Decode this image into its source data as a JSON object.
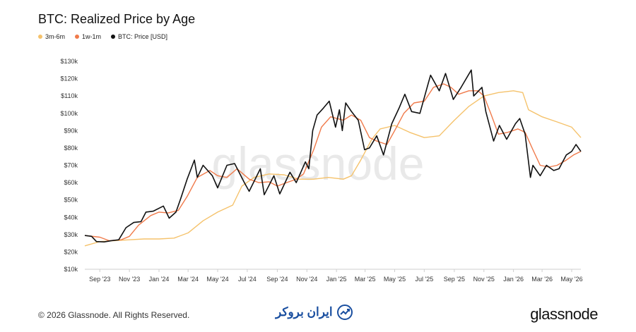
{
  "chart_data": {
    "type": "line",
    "title": "BTC: Realized Price by Age",
    "watermark": "glassnode",
    "legend_position": "top-left",
    "grid": false,
    "ylim": [
      10000,
      130000
    ],
    "y_ticks": [
      {
        "value": 10000,
        "label": "$10k"
      },
      {
        "value": 20000,
        "label": "$20k"
      },
      {
        "value": 30000,
        "label": "$30k"
      },
      {
        "value": 40000,
        "label": "$40k"
      },
      {
        "value": 50000,
        "label": "$50k"
      },
      {
        "value": 60000,
        "label": "$60k"
      },
      {
        "value": 70000,
        "label": "$70k"
      },
      {
        "value": 80000,
        "label": "$80k"
      },
      {
        "value": 90000,
        "label": "$90k"
      },
      {
        "value": 100000,
        "label": "$100k"
      },
      {
        "value": 110000,
        "label": "$110k"
      },
      {
        "value": 120000,
        "label": "$120k"
      },
      {
        "value": 130000,
        "label": "$130k"
      }
    ],
    "xlim": [
      "2023-08-01",
      "2026-05-20"
    ],
    "x_ticks": [
      {
        "date": "2023-09-01",
        "label": "Sep '23"
      },
      {
        "date": "2023-11-01",
        "label": "Nov '23"
      },
      {
        "date": "2024-01-01",
        "label": "Jan '24"
      },
      {
        "date": "2024-03-01",
        "label": "Mar '24"
      },
      {
        "date": "2024-05-01",
        "label": "May '24"
      },
      {
        "date": "2024-07-01",
        "label": "Jul '24"
      },
      {
        "date": "2024-09-01",
        "label": "Sep '24"
      },
      {
        "date": "2024-11-01",
        "label": "Nov '24"
      },
      {
        "date": "2025-01-01",
        "label": "Jan '25"
      },
      {
        "date": "2025-03-01",
        "label": "Mar '25"
      },
      {
        "date": "2025-05-01",
        "label": "May '25"
      },
      {
        "date": "2025-07-01",
        "label": "Jul '25"
      },
      {
        "date": "2025-09-01",
        "label": "Sep '25"
      },
      {
        "date": "2025-11-01",
        "label": "Nov '25"
      },
      {
        "date": "2026-01-01",
        "label": "Jan '26"
      },
      {
        "date": "2026-03-01",
        "label": "Mar '26"
      },
      {
        "date": "2026-05-01",
        "label": "May '26"
      }
    ],
    "series": [
      {
        "name": "3m-6m",
        "color": "#f5c26b",
        "points": [
          [
            "2023-08-01",
            23500
          ],
          [
            "2023-09-01",
            26000
          ],
          [
            "2023-10-01",
            26500
          ],
          [
            "2023-11-01",
            27000
          ],
          [
            "2023-12-01",
            27500
          ],
          [
            "2024-01-01",
            27500
          ],
          [
            "2024-02-01",
            28000
          ],
          [
            "2024-03-01",
            31000
          ],
          [
            "2024-04-01",
            38000
          ],
          [
            "2024-05-01",
            43000
          ],
          [
            "2024-06-01",
            47000
          ],
          [
            "2024-06-20",
            58000
          ],
          [
            "2024-07-15",
            63000
          ],
          [
            "2024-08-15",
            65000
          ],
          [
            "2024-09-15",
            64500
          ],
          [
            "2024-10-15",
            62000
          ],
          [
            "2024-11-15",
            62000
          ],
          [
            "2024-12-15",
            63000
          ],
          [
            "2025-01-15",
            62000
          ],
          [
            "2025-02-01",
            64000
          ],
          [
            "2025-02-20",
            73000
          ],
          [
            "2025-03-15",
            85000
          ],
          [
            "2025-04-01",
            91000
          ],
          [
            "2025-05-01",
            93000
          ],
          [
            "2025-06-01",
            89000
          ],
          [
            "2025-07-01",
            86000
          ],
          [
            "2025-08-01",
            87000
          ],
          [
            "2025-09-01",
            96000
          ],
          [
            "2025-10-01",
            104000
          ],
          [
            "2025-11-01",
            110000
          ],
          [
            "2025-12-01",
            112000
          ],
          [
            "2026-01-01",
            113000
          ],
          [
            "2026-01-20",
            112000
          ],
          [
            "2026-02-01",
            102000
          ],
          [
            "2026-03-01",
            98000
          ],
          [
            "2026-04-01",
            95000
          ],
          [
            "2026-05-01",
            92000
          ],
          [
            "2026-05-20",
            86000
          ]
        ]
      },
      {
        "name": "1w-1m",
        "color": "#f07a4a",
        "points": [
          [
            "2023-08-01",
            29500
          ],
          [
            "2023-09-01",
            28500
          ],
          [
            "2023-09-20",
            26500
          ],
          [
            "2023-10-15",
            27000
          ],
          [
            "2023-11-01",
            29000
          ],
          [
            "2023-11-20",
            35500
          ],
          [
            "2023-12-15",
            41000
          ],
          [
            "2024-01-01",
            43000
          ],
          [
            "2024-01-20",
            42500
          ],
          [
            "2024-02-10",
            44000
          ],
          [
            "2024-02-28",
            52000
          ],
          [
            "2024-03-20",
            63000
          ],
          [
            "2024-04-15",
            67000
          ],
          [
            "2024-05-01",
            64000
          ],
          [
            "2024-05-20",
            63000
          ],
          [
            "2024-06-10",
            68000
          ],
          [
            "2024-07-05",
            62000
          ],
          [
            "2024-07-25",
            60000
          ],
          [
            "2024-08-15",
            60500
          ],
          [
            "2024-09-01",
            58000
          ],
          [
            "2024-09-20",
            60000
          ],
          [
            "2024-10-10",
            62000
          ],
          [
            "2024-10-25",
            65000
          ],
          [
            "2024-11-15",
            79000
          ],
          [
            "2024-12-01",
            92000
          ],
          [
            "2024-12-20",
            98000
          ],
          [
            "2025-01-15",
            96000
          ],
          [
            "2025-02-01",
            99000
          ],
          [
            "2025-02-20",
            96000
          ],
          [
            "2025-03-10",
            86000
          ],
          [
            "2025-03-25",
            84000
          ],
          [
            "2025-04-15",
            82000
          ],
          [
            "2025-05-01",
            90000
          ],
          [
            "2025-05-20",
            100000
          ],
          [
            "2025-06-10",
            106000
          ],
          [
            "2025-07-01",
            107000
          ],
          [
            "2025-07-20",
            115000
          ],
          [
            "2025-08-10",
            117000
          ],
          [
            "2025-08-25",
            115000
          ],
          [
            "2025-09-10",
            111000
          ],
          [
            "2025-10-01",
            113000
          ],
          [
            "2025-10-20",
            113000
          ],
          [
            "2025-11-01",
            110000
          ],
          [
            "2025-11-15",
            100000
          ],
          [
            "2025-12-01",
            88000
          ],
          [
            "2025-12-20",
            89000
          ],
          [
            "2026-01-10",
            91000
          ],
          [
            "2026-01-25",
            89000
          ],
          [
            "2026-02-10",
            79000
          ],
          [
            "2026-02-25",
            70000
          ],
          [
            "2026-03-15",
            69000
          ],
          [
            "2026-04-01",
            70000
          ],
          [
            "2026-04-20",
            73000
          ],
          [
            "2026-05-05",
            76000
          ],
          [
            "2026-05-20",
            78000
          ]
        ]
      },
      {
        "name": "BTC: Price [USD]",
        "color": "#111111",
        "points": [
          [
            "2023-08-01",
            29500
          ],
          [
            "2023-08-15",
            29000
          ],
          [
            "2023-08-25",
            26000
          ],
          [
            "2023-09-10",
            25800
          ],
          [
            "2023-09-25",
            26500
          ],
          [
            "2023-10-10",
            27000
          ],
          [
            "2023-10-25",
            34000
          ],
          [
            "2023-11-10",
            37000
          ],
          [
            "2023-11-25",
            37500
          ],
          [
            "2023-12-05",
            43000
          ],
          [
            "2023-12-20",
            43500
          ],
          [
            "2024-01-10",
            46500
          ],
          [
            "2024-01-22",
            39500
          ],
          [
            "2024-02-05",
            43000
          ],
          [
            "2024-02-15",
            51000
          ],
          [
            "2024-02-28",
            62000
          ],
          [
            "2024-03-14",
            73000
          ],
          [
            "2024-03-20",
            63000
          ],
          [
            "2024-04-01",
            70000
          ],
          [
            "2024-04-20",
            64000
          ],
          [
            "2024-05-01",
            57000
          ],
          [
            "2024-05-20",
            70000
          ],
          [
            "2024-06-05",
            71000
          ],
          [
            "2024-06-25",
            60000
          ],
          [
            "2024-07-05",
            55000
          ],
          [
            "2024-07-28",
            68000
          ],
          [
            "2024-08-05",
            53000
          ],
          [
            "2024-08-25",
            64000
          ],
          [
            "2024-09-06",
            53500
          ],
          [
            "2024-09-27",
            66000
          ],
          [
            "2024-10-10",
            60000
          ],
          [
            "2024-10-29",
            72000
          ],
          [
            "2024-11-05",
            68000
          ],
          [
            "2024-11-13",
            90000
          ],
          [
            "2024-11-22",
            99000
          ],
          [
            "2024-12-05",
            103000
          ],
          [
            "2024-12-17",
            107000
          ],
          [
            "2024-12-30",
            92000
          ],
          [
            "2025-01-07",
            102000
          ],
          [
            "2025-01-13",
            90000
          ],
          [
            "2025-01-20",
            106000
          ],
          [
            "2025-02-01",
            101000
          ],
          [
            "2025-02-15",
            96000
          ],
          [
            "2025-02-28",
            79000
          ],
          [
            "2025-03-10",
            80000
          ],
          [
            "2025-03-25",
            87000
          ],
          [
            "2025-04-08",
            76000
          ],
          [
            "2025-04-25",
            94000
          ],
          [
            "2025-05-10",
            103000
          ],
          [
            "2025-05-22",
            111000
          ],
          [
            "2025-06-05",
            101000
          ],
          [
            "2025-06-22",
            100000
          ],
          [
            "2025-07-10",
            118000
          ],
          [
            "2025-07-14",
            122000
          ],
          [
            "2025-08-01",
            113000
          ],
          [
            "2025-08-14",
            123000
          ],
          [
            "2025-08-30",
            108000
          ],
          [
            "2025-09-15",
            115000
          ],
          [
            "2025-10-06",
            125000
          ],
          [
            "2025-10-11",
            110000
          ],
          [
            "2025-10-28",
            115000
          ],
          [
            "2025-11-05",
            101000
          ],
          [
            "2025-11-21",
            84000
          ],
          [
            "2025-12-03",
            93000
          ],
          [
            "2025-12-18",
            85000
          ],
          [
            "2026-01-05",
            94000
          ],
          [
            "2026-01-14",
            97000
          ],
          [
            "2026-01-25",
            88000
          ],
          [
            "2026-02-05",
            63000
          ],
          [
            "2026-02-10",
            70000
          ],
          [
            "2026-02-25",
            64000
          ],
          [
            "2026-03-10",
            70000
          ],
          [
            "2026-03-25",
            67000
          ],
          [
            "2026-04-05",
            68000
          ],
          [
            "2026-04-20",
            76000
          ],
          [
            "2026-05-01",
            78000
          ],
          [
            "2026-05-10",
            82000
          ],
          [
            "2026-05-20",
            78000
          ]
        ]
      }
    ]
  },
  "footer": {
    "copyright": "© 2026 Glassnode. All Rights Reserved.",
    "brand_text": "ایران بروکر",
    "logo_text": "glassnode",
    "brand_icon": "chart-trend-icon"
  }
}
